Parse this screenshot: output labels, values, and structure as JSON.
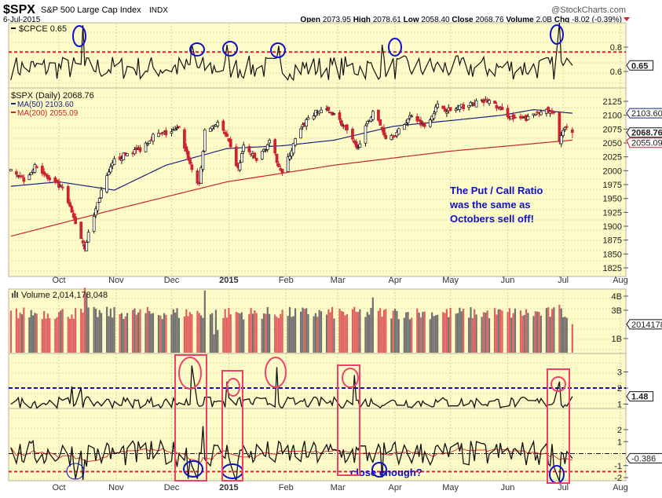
{
  "header": {
    "symbol": "$SPX",
    "name": "S&P 500 Large Cap Index",
    "exchange": "INDX",
    "watermark": "@StockCharts.com",
    "date": "6-Jul-2015",
    "open_label": "Open",
    "open": "2073.95",
    "high_label": "High",
    "high": "2078.61",
    "low_label": "Low",
    "low": "2058.40",
    "close_label": "Close",
    "close": "2068.76",
    "volume_label": "Volume",
    "volume": "2.0B",
    "chg_label": "Chg",
    "chg": "-8.02 (-0.39%)",
    "chg_direction": "down"
  },
  "annotations": {
    "note_lines": [
      "The Put / Call Ratio",
      "was the same as",
      "Octobers sell off!"
    ],
    "close_enough": "close enough?"
  },
  "colors": {
    "panel_bg": "#fdfbc8",
    "down": "#cc2233",
    "ma50": "#1a237e",
    "ma200": "#c62828",
    "circle": "#1010c8",
    "box": "#f0406a"
  },
  "chart_data": [
    {
      "type": "line",
      "panel": "cpce",
      "legend": "$CPCE 0.65",
      "y_ticks": [
        "0.8",
        "0.6"
      ],
      "last_value": "0.65",
      "reference_line": 0.76,
      "base_level": 0.62,
      "spikes": [
        [
          "2014-10-14",
          0.98
        ],
        [
          "2014-12-12",
          0.82
        ],
        [
          "2014-12-31",
          0.82
        ],
        [
          "2015-01-28",
          0.81
        ],
        [
          "2015-03-25",
          0.82
        ],
        [
          "2015-06-29",
          1.0
        ]
      ],
      "last": 0.65
    },
    {
      "type": "candlestick",
      "panel": "price",
      "legend": "$SPX (Daily) 2068.76",
      "ma50_legend": "MA(50) 2103.60",
      "ma200_legend": "MA(200) 2055.09",
      "y_ticks": [
        "2125",
        "2100",
        "2075",
        "2050",
        "2025",
        "2000",
        "1975",
        "1950",
        "1925",
        "1900",
        "1875",
        "1850",
        "1825"
      ],
      "ylim": [
        1815,
        2140
      ],
      "tags": {
        "ma50": "2103.60",
        "close": "2068.76",
        "ma200": "2055.09"
      },
      "weekly_closes": [
        [
          "2014-09-05",
          2007
        ],
        [
          "2014-09-12",
          1985
        ],
        [
          "2014-09-19",
          2010
        ],
        [
          "2014-09-26",
          1982
        ],
        [
          "2014-10-03",
          1967
        ],
        [
          "2014-10-10",
          1906
        ],
        [
          "2014-10-15",
          1862
        ],
        [
          "2014-10-17",
          1886
        ],
        [
          "2014-10-24",
          1964
        ],
        [
          "2014-10-31",
          2018
        ],
        [
          "2014-11-07",
          2031
        ],
        [
          "2014-11-14",
          2039
        ],
        [
          "2014-11-21",
          2063
        ],
        [
          "2014-11-28",
          2067
        ],
        [
          "2014-12-05",
          2075
        ],
        [
          "2014-12-12",
          2002
        ],
        [
          "2014-12-16",
          1972
        ],
        [
          "2014-12-19",
          2070
        ],
        [
          "2014-12-26",
          2088
        ],
        [
          "2014-12-31",
          2058
        ],
        [
          "2015-01-06",
          2002
        ],
        [
          "2015-01-09",
          2044
        ],
        [
          "2015-01-16",
          2019
        ],
        [
          "2015-01-23",
          2051
        ],
        [
          "2015-01-30",
          1995
        ],
        [
          "2015-02-06",
          2055
        ],
        [
          "2015-02-13",
          2096
        ],
        [
          "2015-02-20",
          2110
        ],
        [
          "2015-02-27",
          2104
        ],
        [
          "2015-03-06",
          2071
        ],
        [
          "2015-03-11",
          2040
        ],
        [
          "2015-03-13",
          2053
        ],
        [
          "2015-03-20",
          2108
        ],
        [
          "2015-03-27",
          2061
        ],
        [
          "2015-04-02",
          2067
        ],
        [
          "2015-04-10",
          2102
        ],
        [
          "2015-04-17",
          2081
        ],
        [
          "2015-04-24",
          2117
        ],
        [
          "2015-05-01",
          2108
        ],
        [
          "2015-05-08",
          2116
        ],
        [
          "2015-05-15",
          2122
        ],
        [
          "2015-05-22",
          2126
        ],
        [
          "2015-05-29",
          2107
        ],
        [
          "2015-06-05",
          2092
        ],
        [
          "2015-06-12",
          2094
        ],
        [
          "2015-06-19",
          2110
        ],
        [
          "2015-06-26",
          2101
        ],
        [
          "2015-06-29",
          2057
        ],
        [
          "2015-07-02",
          2076
        ],
        [
          "2015-07-06",
          2068.76
        ]
      ],
      "last_candle": {
        "open": 2073.95,
        "high": 2078.61,
        "low": 2058.4,
        "close": 2068.76
      },
      "ma50": [
        [
          "2014-09-05",
          1972
        ],
        [
          "2014-10-01",
          1980
        ],
        [
          "2014-10-31",
          1965
        ],
        [
          "2014-11-28",
          2010
        ],
        [
          "2014-12-31",
          2040
        ],
        [
          "2015-01-30",
          2045
        ],
        [
          "2015-02-27",
          2055
        ],
        [
          "2015-03-31",
          2080
        ],
        [
          "2015-04-30",
          2090
        ],
        [
          "2015-05-29",
          2100
        ],
        [
          "2015-06-15",
          2110
        ],
        [
          "2015-07-06",
          2103.6
        ]
      ],
      "ma200": [
        [
          "2014-09-05",
          1882
        ],
        [
          "2014-10-31",
          1930
        ],
        [
          "2014-12-31",
          1980
        ],
        [
          "2015-02-27",
          2010
        ],
        [
          "2015-04-30",
          2035
        ],
        [
          "2015-07-06",
          2055.09
        ]
      ]
    },
    {
      "type": "bar",
      "panel": "volume",
      "legend": "Volume 2,014,178,048",
      "y_ticks": [
        "4B",
        "3B",
        "1B"
      ],
      "last_value": "2014178",
      "base_billions": 2.8,
      "spikes": [
        [
          "2014-10-15",
          4.6
        ],
        [
          "2014-10-16",
          4.2
        ],
        [
          "2014-12-19",
          4.4
        ],
        [
          "2014-12-24",
          1.3
        ],
        [
          "2014-12-26",
          1.6
        ],
        [
          "2015-03-20",
          3.9
        ],
        [
          "2015-06-29",
          3.4
        ]
      ],
      "last": 2.01
    },
    {
      "type": "line",
      "panel": "indicator-upper",
      "y_ticks": [
        "3",
        "2",
        "1"
      ],
      "last_value": "1.48",
      "reference_line": 2,
      "base_level": 1.1,
      "spikes": [
        [
          "2014-10-08",
          2.1
        ],
        [
          "2014-10-13",
          2.0
        ],
        [
          "2014-12-12",
          3.4
        ],
        [
          "2014-12-31",
          2.4
        ],
        [
          "2015-01-27",
          3.3
        ],
        [
          "2015-03-10",
          2.8
        ],
        [
          "2015-06-29",
          2.4
        ]
      ],
      "last": 1.48
    },
    {
      "type": "line",
      "panel": "indicator-lower",
      "y_ticks": [
        "2",
        "1",
        "-1",
        "-2"
      ],
      "last_value": "-0.386",
      "reference_lines": [
        0,
        -1.5
      ],
      "spikes": [
        [
          "2014-10-10",
          -2.1
        ],
        [
          "2014-10-14",
          -2.2
        ],
        [
          "2014-12-10",
          -2.1
        ],
        [
          "2014-12-15",
          -2.1
        ],
        [
          "2014-12-18",
          2.3
        ],
        [
          "2015-01-05",
          -2.3
        ],
        [
          "2015-03-25",
          -2.0
        ],
        [
          "2015-06-29",
          -2.3
        ]
      ],
      "last": -0.386
    }
  ],
  "x_axis": {
    "months": [
      [
        "Oct",
        "2014-10-01"
      ],
      [
        "Nov",
        "2014-11-01"
      ],
      [
        "Dec",
        "2014-12-01"
      ],
      [
        "2015",
        "2015-01-01"
      ],
      [
        "Feb",
        "2015-02-01"
      ],
      [
        "Mar",
        "2015-03-01"
      ],
      [
        "Apr",
        "2015-04-01"
      ],
      [
        "May",
        "2015-05-01"
      ],
      [
        "Jun",
        "2015-06-01"
      ],
      [
        "Jul",
        "2015-07-01"
      ],
      [
        "Aug",
        "2015-08-01"
      ]
    ]
  }
}
